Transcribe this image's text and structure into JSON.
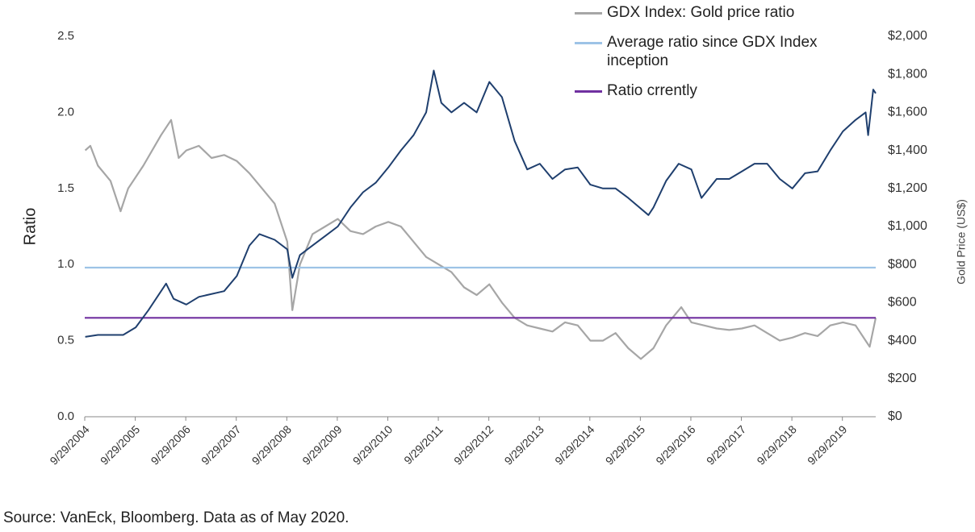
{
  "chart_data": {
    "type": "line",
    "ylabel": "Ratio",
    "y2label": "Gold Price (US$)",
    "source": "Source: VanEck, Bloomberg. Data as of May 2020.",
    "xlim": [
      2004.74,
      2020.4
    ],
    "xticks": [
      {
        "value": 2004.74,
        "label": "9/29/2004"
      },
      {
        "value": 2005.74,
        "label": "9/29/2005"
      },
      {
        "value": 2006.74,
        "label": "9/29/2006"
      },
      {
        "value": 2007.74,
        "label": "9/29/2007"
      },
      {
        "value": 2008.74,
        "label": "9/29/2008"
      },
      {
        "value": 2009.74,
        "label": "9/29/2009"
      },
      {
        "value": 2010.74,
        "label": "9/29/2010"
      },
      {
        "value": 2011.74,
        "label": "9/29/2011"
      },
      {
        "value": 2012.74,
        "label": "9/29/2012"
      },
      {
        "value": 2013.74,
        "label": "9/29/2013"
      },
      {
        "value": 2014.74,
        "label": "9/29/2014"
      },
      {
        "value": 2015.74,
        "label": "9/29/2015"
      },
      {
        "value": 2016.74,
        "label": "9/29/2016"
      },
      {
        "value": 2017.74,
        "label": "9/29/2017"
      },
      {
        "value": 2018.74,
        "label": "9/29/2018"
      },
      {
        "value": 2019.74,
        "label": "9/29/2019"
      }
    ],
    "ylim": [
      0,
      2.5
    ],
    "yticks": [
      {
        "value": 0,
        "label": "0.0"
      },
      0.5,
      {
        "value": 1,
        "label": "1.0"
      },
      1.5,
      {
        "value": 2,
        "label": "2.0"
      },
      2.5
    ],
    "y2lim": [
      0,
      2000
    ],
    "y2ticks": [
      {
        "value": 0,
        "label": "$0"
      },
      {
        "value": 200,
        "label": "$200"
      },
      {
        "value": 400,
        "label": "$400"
      },
      {
        "value": 600,
        "label": "$600"
      },
      {
        "value": 800,
        "label": "$800"
      },
      {
        "value": 1000,
        "label": "$1,000"
      },
      {
        "value": 1200,
        "label": "$1,200"
      },
      {
        "value": 1400,
        "label": "$1,400"
      },
      {
        "value": 1600,
        "label": "$1,600"
      },
      {
        "value": 1800,
        "label": "$1,800"
      },
      {
        "value": 2000,
        "label": "$2,000"
      }
    ],
    "series": [
      {
        "name": "GDX Index: Gold price ratio",
        "color": "#a6a6a6",
        "x": [
          2004.75,
          2004.85,
          2005.0,
          2005.25,
          2005.45,
          2005.6,
          2005.9,
          2006.25,
          2006.45,
          2006.6,
          2006.75,
          2007.0,
          2007.25,
          2007.5,
          2007.75,
          2008.0,
          2008.25,
          2008.5,
          2008.75,
          2008.85,
          2009.0,
          2009.25,
          2009.5,
          2009.75,
          2010.0,
          2010.25,
          2010.5,
          2010.75,
          2011.0,
          2011.25,
          2011.5,
          2011.75,
          2012.0,
          2012.25,
          2012.5,
          2012.75,
          2013.0,
          2013.25,
          2013.5,
          2013.75,
          2014.0,
          2014.25,
          2014.5,
          2014.75,
          2015.0,
          2015.25,
          2015.5,
          2015.75,
          2016.0,
          2016.25,
          2016.55,
          2016.75,
          2017.0,
          2017.25,
          2017.5,
          2017.75,
          2018.0,
          2018.25,
          2018.5,
          2018.75,
          2019.0,
          2019.25,
          2019.5,
          2019.75,
          2020.0,
          2020.2,
          2020.28,
          2020.4
        ],
        "values": [
          1.75,
          1.78,
          1.65,
          1.55,
          1.35,
          1.5,
          1.65,
          1.85,
          1.95,
          1.7,
          1.75,
          1.78,
          1.7,
          1.72,
          1.68,
          1.6,
          1.5,
          1.4,
          1.15,
          0.7,
          1.0,
          1.2,
          1.25,
          1.3,
          1.22,
          1.2,
          1.25,
          1.28,
          1.25,
          1.15,
          1.05,
          1.0,
          0.95,
          0.85,
          0.8,
          0.87,
          0.75,
          0.65,
          0.6,
          0.58,
          0.56,
          0.62,
          0.6,
          0.5,
          0.5,
          0.55,
          0.45,
          0.38,
          0.45,
          0.6,
          0.72,
          0.62,
          0.6,
          0.58,
          0.57,
          0.58,
          0.6,
          0.55,
          0.5,
          0.52,
          0.55,
          0.53,
          0.6,
          0.62,
          0.6,
          0.5,
          0.46,
          0.65
        ]
      },
      {
        "name": "Average ratio since GDX Index inception",
        "color": "#9dc3e6",
        "x": [
          2004.74,
          2020.4
        ],
        "values": [
          0.98,
          0.98
        ]
      },
      {
        "name": "Ratio crrently",
        "color": "#7030a0",
        "x": [
          2004.74,
          2020.4
        ],
        "values": [
          0.65,
          0.65
        ]
      },
      {
        "color": "#1f3f6e",
        "axis": "y2",
        "x": [
          2004.75,
          2005.0,
          2005.5,
          2005.75,
          2006.0,
          2006.35,
          2006.5,
          2006.75,
          2007.0,
          2007.5,
          2007.75,
          2008.0,
          2008.2,
          2008.5,
          2008.75,
          2008.85,
          2009.0,
          2009.25,
          2009.5,
          2009.75,
          2010.0,
          2010.25,
          2010.5,
          2010.75,
          2011.0,
          2011.25,
          2011.5,
          2011.65,
          2011.8,
          2012.0,
          2012.25,
          2012.5,
          2012.75,
          2013.0,
          2013.25,
          2013.5,
          2013.75,
          2014.0,
          2014.25,
          2014.5,
          2014.75,
          2015.0,
          2015.25,
          2015.5,
          2015.9,
          2016.0,
          2016.25,
          2016.5,
          2016.75,
          2016.95,
          2017.25,
          2017.5,
          2017.75,
          2018.0,
          2018.25,
          2018.5,
          2018.75,
          2019.0,
          2019.25,
          2019.5,
          2019.75,
          2020.0,
          2020.2,
          2020.25,
          2020.35,
          2020.4
        ],
        "values": [
          420,
          430,
          430,
          470,
          560,
          700,
          620,
          590,
          630,
          660,
          740,
          900,
          960,
          930,
          880,
          730,
          850,
          900,
          950,
          1000,
          1100,
          1180,
          1230,
          1310,
          1400,
          1480,
          1600,
          1820,
          1650,
          1600,
          1650,
          1600,
          1760,
          1680,
          1450,
          1300,
          1330,
          1250,
          1300,
          1310,
          1220,
          1200,
          1200,
          1150,
          1060,
          1100,
          1240,
          1330,
          1300,
          1150,
          1250,
          1250,
          1290,
          1330,
          1330,
          1250,
          1200,
          1280,
          1290,
          1400,
          1500,
          1560,
          1600,
          1480,
          1720,
          1700
        ]
      }
    ]
  }
}
